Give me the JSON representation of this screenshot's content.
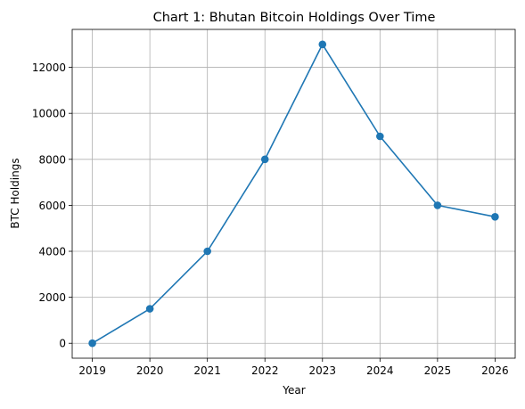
{
  "chart_data": {
    "type": "line",
    "title": "Chart 1: Bhutan Bitcoin Holdings Over Time",
    "xlabel": "Year",
    "ylabel": "BTC Holdings",
    "x": [
      2019,
      2020,
      2021,
      2022,
      2023,
      2024,
      2025,
      2026
    ],
    "series": [
      {
        "values": [
          0,
          1500,
          4000,
          8000,
          13000,
          9000,
          6000,
          5500
        ],
        "color": "#1f77b4",
        "marker": "circle"
      }
    ],
    "xticks": [
      "2019",
      "2020",
      "2021",
      "2022",
      "2023",
      "2024",
      "2025",
      "2026"
    ],
    "yticks": [
      "0",
      "2000",
      "4000",
      "6000",
      "8000",
      "10000",
      "12000"
    ],
    "xlim": [
      2018.65,
      2026.35
    ],
    "ylim": [
      -650,
      13650
    ],
    "grid": true,
    "colors": {
      "grid": "#b0b0b0",
      "axes": "#000000",
      "background": "#ffffff"
    }
  }
}
